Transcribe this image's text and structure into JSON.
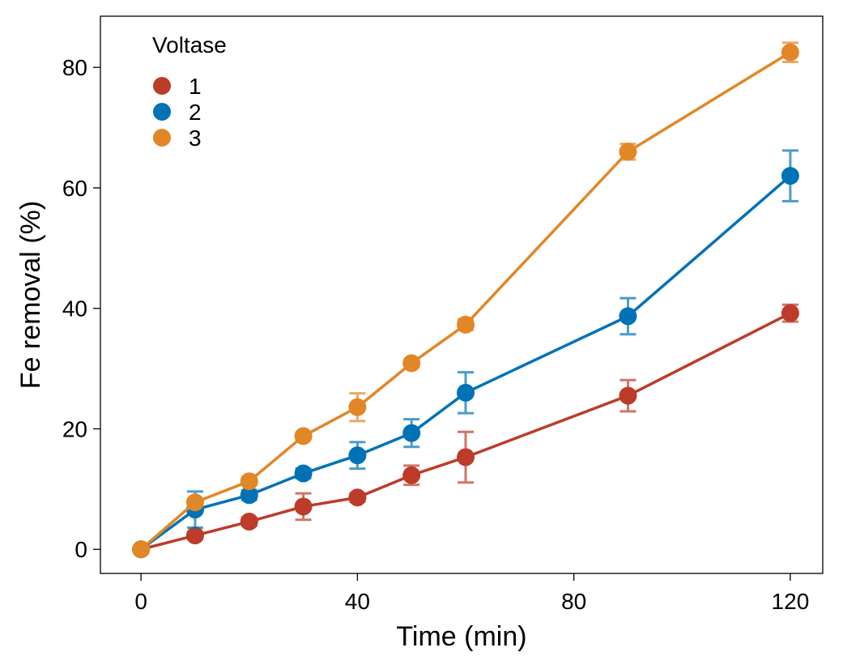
{
  "chart_data": {
    "type": "line",
    "title": "",
    "xlabel": "Time (min)",
    "ylabel": "Fe removal (%)",
    "xlim": [
      -7.5,
      126
    ],
    "ylim": [
      -4,
      88.5
    ],
    "xticks": [
      0,
      40,
      80,
      120
    ],
    "yticks": [
      0,
      20,
      40,
      60,
      80
    ],
    "xtick_labels": [
      "0",
      "40",
      "80",
      "120"
    ],
    "ytick_labels": [
      "0",
      "20",
      "40",
      "60",
      "80"
    ],
    "grid": false,
    "legend": {
      "title": "Voltase",
      "placement": "top-left"
    },
    "x": [
      0,
      10,
      20,
      30,
      40,
      50,
      60,
      90,
      120
    ],
    "series": [
      {
        "name": "1",
        "color": "#BC3C29",
        "values": [
          0,
          2.3,
          4.6,
          7.1,
          8.6,
          12.3,
          15.3,
          25.5,
          39.2
        ],
        "errors": [
          0.3,
          0.6,
          0.7,
          2.2,
          0.7,
          1.6,
          4.2,
          2.6,
          1.4
        ]
      },
      {
        "name": "2",
        "color": "#0072B5",
        "values": [
          0,
          6.6,
          9.0,
          12.6,
          15.6,
          19.3,
          26.0,
          38.7,
          62.0
        ],
        "errors": [
          0.3,
          3.0,
          0.8,
          0.8,
          2.2,
          2.3,
          3.4,
          3.0,
          4.2
        ]
      },
      {
        "name": "3",
        "color": "#E18727",
        "values": [
          0,
          7.8,
          11.3,
          18.8,
          23.6,
          30.9,
          37.3,
          66.0,
          82.5
        ],
        "errors": [
          0.3,
          0.6,
          0.6,
          0.6,
          2.3,
          0.7,
          0.9,
          1.3,
          1.6
        ]
      }
    ]
  }
}
